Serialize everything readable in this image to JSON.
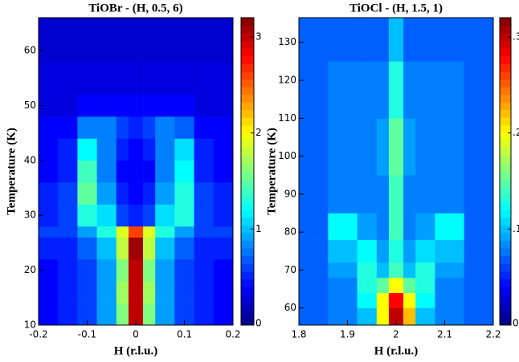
{
  "chart_data": [
    {
      "type": "heatmap",
      "title": "TiOBr - (H, 0.5, 6)",
      "xlabel": "H (r.l.u.)",
      "ylabel": "Temperature (K)",
      "colormap": "jet",
      "x": [
        -0.2,
        -0.16,
        -0.12,
        -0.08,
        -0.04,
        -0.015,
        0.015,
        0.04,
        0.08,
        0.12,
        0.16,
        0.2
      ],
      "y": [
        10,
        14,
        18,
        22,
        26,
        28,
        32,
        36,
        40,
        44,
        48,
        52,
        58,
        66
      ],
      "z": [
        [
          0.4,
          0.5,
          0.6,
          0.9,
          1.6,
          3.0,
          1.6,
          0.9,
          0.6,
          0.5,
          0.4
        ],
        [
          0.4,
          0.5,
          0.6,
          0.9,
          1.7,
          3.0,
          1.7,
          0.9,
          0.6,
          0.5,
          0.4
        ],
        [
          0.4,
          0.5,
          0.6,
          0.9,
          1.6,
          3.0,
          1.6,
          0.9,
          0.6,
          0.5,
          0.4
        ],
        [
          0.5,
          0.5,
          0.7,
          1.0,
          1.8,
          3.1,
          1.8,
          1.0,
          0.7,
          0.5,
          0.5
        ],
        [
          0.6,
          0.6,
          0.9,
          1.3,
          1.9,
          2.6,
          1.9,
          1.3,
          0.9,
          0.6,
          0.6
        ],
        [
          0.5,
          0.6,
          1.3,
          1.1,
          0.6,
          0.5,
          0.6,
          1.1,
          1.3,
          0.6,
          0.5
        ],
        [
          0.5,
          0.6,
          1.5,
          0.9,
          0.5,
          0.4,
          0.5,
          0.9,
          1.3,
          0.6,
          0.5
        ],
        [
          0.4,
          0.5,
          1.4,
          0.8,
          0.4,
          0.4,
          0.4,
          0.8,
          1.2,
          0.5,
          0.4
        ],
        [
          0.4,
          0.5,
          1.2,
          0.8,
          0.5,
          0.4,
          0.5,
          0.8,
          1.1,
          0.5,
          0.4
        ],
        [
          0.4,
          0.4,
          0.8,
          0.8,
          0.6,
          0.5,
          0.6,
          0.8,
          0.7,
          0.4,
          0.4
        ],
        [
          0.3,
          0.3,
          0.4,
          0.4,
          0.4,
          0.4,
          0.4,
          0.4,
          0.4,
          0.3,
          0.3
        ],
        [
          0.3,
          0.3,
          0.3,
          0.3,
          0.3,
          0.3,
          0.3,
          0.3,
          0.3,
          0.3,
          0.3
        ],
        [
          0.25,
          0.25,
          0.25,
          0.25,
          0.25,
          0.25,
          0.25,
          0.25,
          0.25,
          0.25,
          0.25
        ]
      ],
      "xlim": [
        -0.2,
        0.2
      ],
      "ylim": [
        10,
        66
      ],
      "xticks": [
        -0.2,
        -0.1,
        0,
        0.1,
        0.2
      ],
      "yticks": [
        10,
        20,
        30,
        40,
        50,
        60
      ],
      "clim": [
        0,
        3.2
      ],
      "cticks": [
        0,
        1,
        2,
        3
      ]
    },
    {
      "type": "heatmap",
      "title": "TiOCl - (H, 1.5, 1)",
      "xlabel": "H (r.l.u.)",
      "ylabel": "Temperature (K)",
      "colormap": "jet",
      "x": [
        1.8,
        1.86,
        1.92,
        1.96,
        1.985,
        2.015,
        2.04,
        2.08,
        2.14,
        2.2
      ],
      "y": [
        55.5,
        60,
        64,
        68,
        72,
        78,
        85,
        95,
        110,
        125,
        136.5
      ],
      "z": [
        [
          0.07,
          0.08,
          0.1,
          0.2,
          0.3,
          0.22,
          0.1,
          0.08,
          0.07
        ],
        [
          0.07,
          0.08,
          0.12,
          0.2,
          0.28,
          0.2,
          0.12,
          0.08,
          0.07
        ],
        [
          0.07,
          0.08,
          0.13,
          0.15,
          0.2,
          0.15,
          0.13,
          0.08,
          0.07
        ],
        [
          0.07,
          0.09,
          0.13,
          0.1,
          0.14,
          0.1,
          0.13,
          0.09,
          0.07
        ],
        [
          0.07,
          0.1,
          0.12,
          0.09,
          0.13,
          0.09,
          0.11,
          0.1,
          0.07
        ],
        [
          0.07,
          0.12,
          0.09,
          0.08,
          0.14,
          0.08,
          0.09,
          0.12,
          0.07
        ],
        [
          0.07,
          0.08,
          0.08,
          0.08,
          0.14,
          0.08,
          0.08,
          0.08,
          0.07
        ],
        [
          0.07,
          0.08,
          0.08,
          0.09,
          0.15,
          0.09,
          0.08,
          0.08,
          0.07
        ],
        [
          0.07,
          0.08,
          0.08,
          0.08,
          0.13,
          0.08,
          0.08,
          0.08,
          0.07
        ],
        [
          0.07,
          0.07,
          0.07,
          0.07,
          0.1,
          0.07,
          0.07,
          0.07,
          0.07
        ]
      ],
      "xlim": [
        1.8,
        2.2
      ],
      "ylim": [
        55.5,
        136.5
      ],
      "xticks": [
        1.8,
        1.9,
        2,
        2.1,
        2.2
      ],
      "yticks": [
        60,
        70,
        80,
        90,
        100,
        110,
        120,
        130
      ],
      "clim": [
        0,
        0.32
      ],
      "cticks": [
        0,
        {
          "value": 0.1,
          "label": ".1"
        },
        {
          "value": 0.2,
          "label": ".2"
        },
        {
          "value": 0.3,
          "label": ".3"
        }
      ]
    }
  ]
}
